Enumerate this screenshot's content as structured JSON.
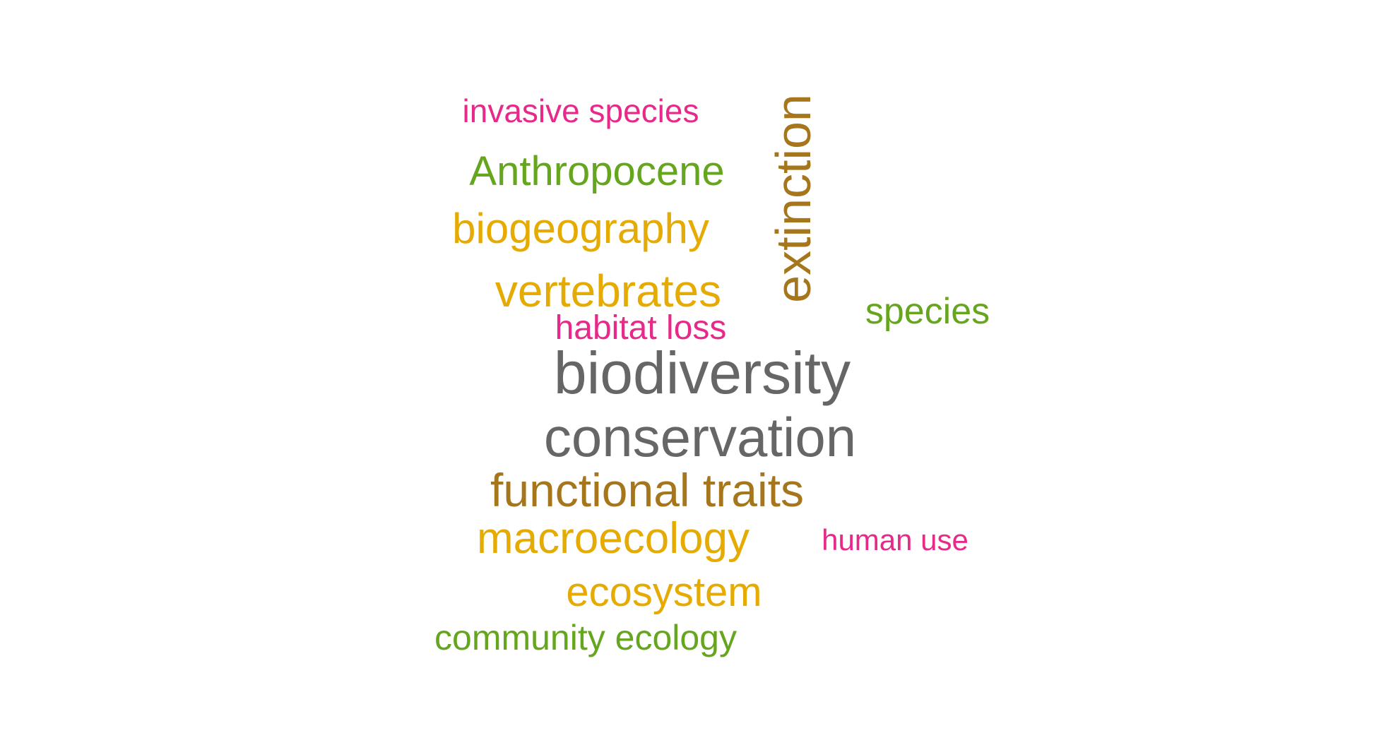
{
  "words": {
    "invasive_species": "invasive species",
    "anthropocene": "Anthropocene",
    "biogeography": "biogeography",
    "vertebrates": "vertebrates",
    "habitat_loss": "habitat loss",
    "biodiversity": "biodiversity",
    "conservation": "conservation",
    "functional_traits": "functional traits",
    "macroecology": "macroecology",
    "ecosystem": "ecosystem",
    "community_ecology": "community ecology",
    "species": "species",
    "human_use": "human use",
    "extinction": "extinction"
  },
  "colors": {
    "pink": "#e7298a",
    "green": "#66a61e",
    "gold": "#e6ab02",
    "brown": "#a6761d",
    "gray": "#666666"
  }
}
